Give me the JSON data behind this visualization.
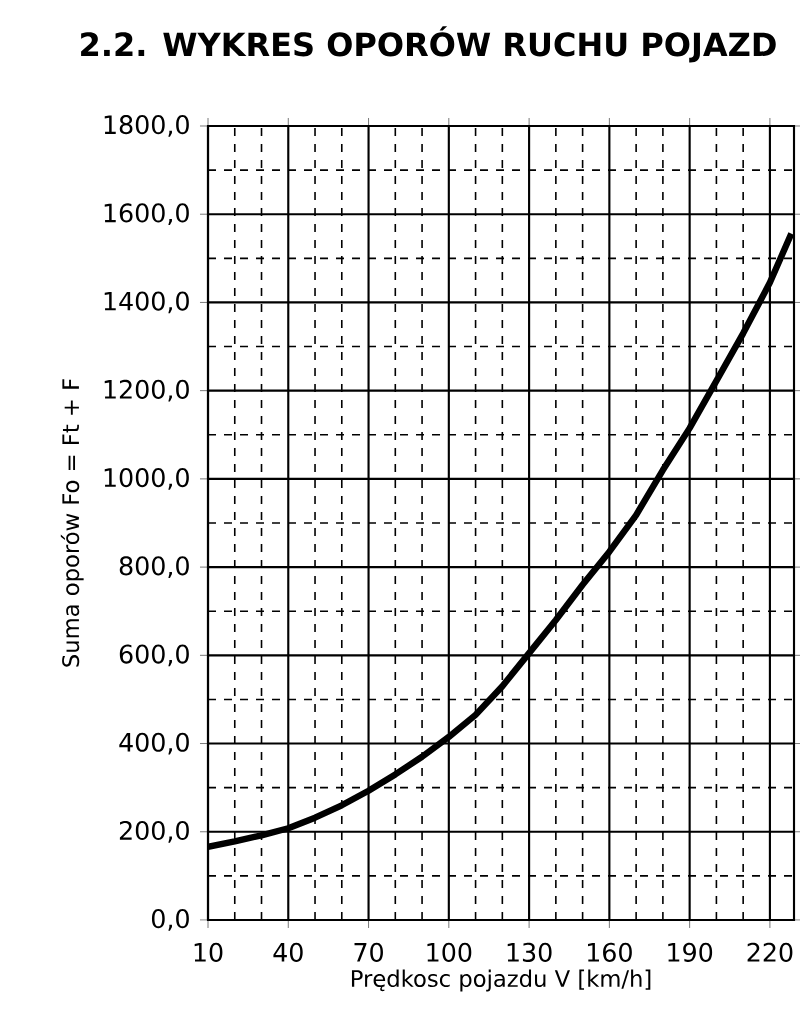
{
  "chart_data": {
    "type": "line",
    "title": "2.2. WYKRES OPORÓW RUCHU POJAZD",
    "xlabel": "Prędkosc pojazdu V [km/h]",
    "ylabel": "Suma oporów  Fo = Ft + F",
    "x": [
      10,
      20,
      30,
      40,
      50,
      60,
      70,
      80,
      90,
      100,
      110,
      120,
      130,
      140,
      150,
      160,
      170,
      180,
      190,
      200,
      210,
      220,
      228
    ],
    "series": [
      {
        "color": "#000000",
        "values": [
          166,
          178,
          192,
          208,
          232,
          260,
          293,
          330,
          370,
          415,
          465,
          530,
          605,
          680,
          760,
          835,
          918,
          1020,
          1115,
          1222,
          1330,
          1445,
          1556
        ]
      }
    ],
    "xlim": [
      10,
      229
    ],
    "ylim": [
      0,
      1800
    ],
    "xticks": [
      10,
      40,
      70,
      100,
      130,
      160,
      190,
      220
    ],
    "yticks": [
      {
        "value": 0,
        "label": "0,0"
      },
      {
        "value": 200,
        "label": "200,0"
      },
      {
        "value": 400,
        "label": "400,0"
      },
      {
        "value": 600,
        "label": "600,0"
      },
      {
        "value": 800,
        "label": "800,0"
      },
      {
        "value": 1000,
        "label": "1000,0"
      },
      {
        "value": 1200,
        "label": "1200,0"
      },
      {
        "value": 1400,
        "label": "1400,0"
      },
      {
        "value": 1600,
        "label": "1600,0"
      },
      {
        "value": 1800,
        "label": "1800,0"
      }
    ],
    "grid": true,
    "marker": "none",
    "line_style": "solid"
  }
}
